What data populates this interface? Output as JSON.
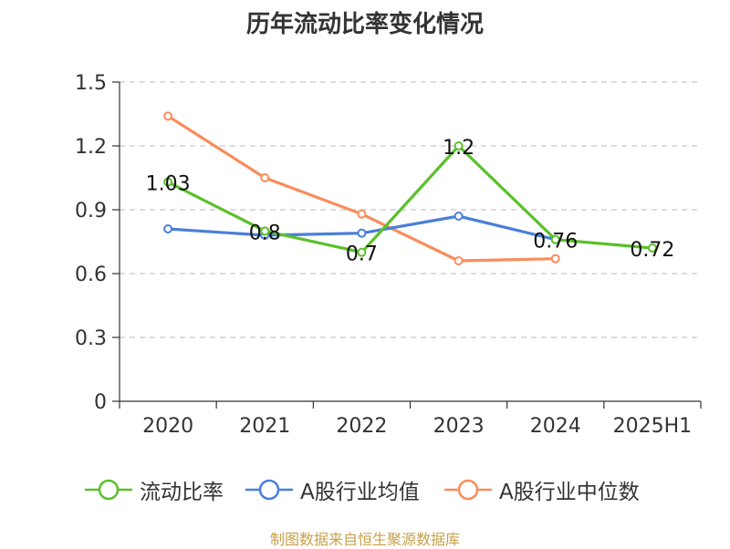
{
  "chart_data": {
    "type": "line",
    "title": "历年流动比率变化情况",
    "categories": [
      "2020",
      "2021",
      "2022",
      "2023",
      "2024",
      "2025H1"
    ],
    "ylim": [
      0,
      1.5
    ],
    "yticks": [
      "0",
      "0.3",
      "0.6",
      "0.9",
      "1.2",
      "1.5"
    ],
    "grid": true,
    "legend_position": "bottom",
    "series": [
      {
        "name": "流动比率",
        "color": "#5bc02b",
        "values": [
          1.03,
          0.8,
          0.7,
          1.2,
          0.76,
          0.72
        ],
        "labels": [
          "1.03",
          "0.8",
          "0.7",
          "1.2",
          "0.76",
          "0.72"
        ]
      },
      {
        "name": "A股行业均值",
        "color": "#4a7fd9",
        "values": [
          0.81,
          0.78,
          0.79,
          0.87,
          0.76,
          null
        ]
      },
      {
        "name": "A股行业中位数",
        "color": "#fa8c5a",
        "values": [
          1.34,
          1.05,
          0.88,
          0.66,
          0.67,
          null
        ]
      }
    ]
  },
  "footer": {
    "source": "制图数据来自恒生聚源数据库"
  }
}
